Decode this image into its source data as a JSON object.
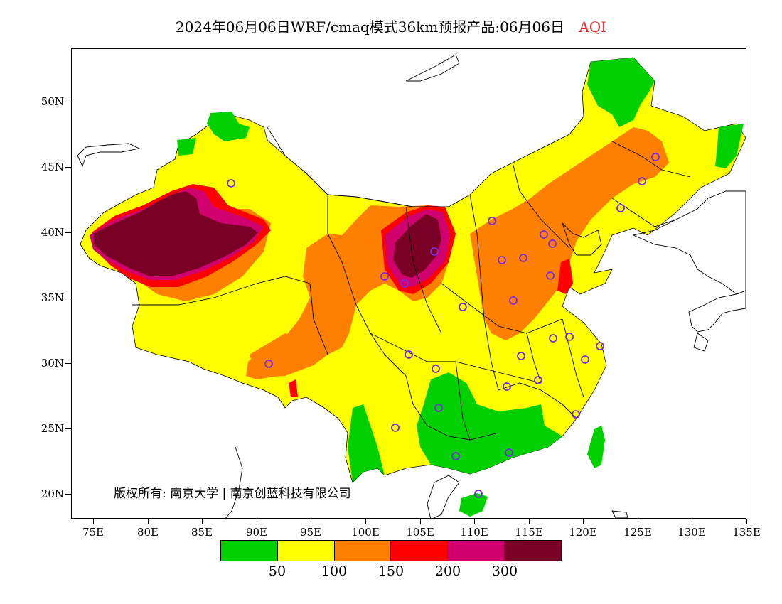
{
  "title": {
    "main": "2024年06月06日WRF/cmaq模式36km预报产品:06月06日",
    "variable": "AQI",
    "variable_color": "#e03030"
  },
  "axes": {
    "y_ticks": [
      "50N",
      "45N",
      "40N",
      "35N",
      "30N",
      "25N",
      "20N"
    ],
    "x_ticks": [
      "75E",
      "80E",
      "85E",
      "90E",
      "95E",
      "100E",
      "105E",
      "110E",
      "115E",
      "120E",
      "125E",
      "130E",
      "135E"
    ]
  },
  "copyright": "版权所有: 南京大学 | 南京创蓝科技有限公司",
  "legend": {
    "colors": [
      "#00d000",
      "#ffff00",
      "#ff8000",
      "#ff0000",
      "#d0006e",
      "#7a0025"
    ],
    "labels": [
      "50",
      "100",
      "150",
      "200",
      "300"
    ]
  },
  "colors": {
    "good": "#00d000",
    "moderate": "#ffff00",
    "sensitive": "#ff8000",
    "unhealthy": "#ff0000",
    "very_unhealthy": "#d0006e",
    "hazardous": "#7a0025",
    "station_marker": "#7a2be0"
  }
}
